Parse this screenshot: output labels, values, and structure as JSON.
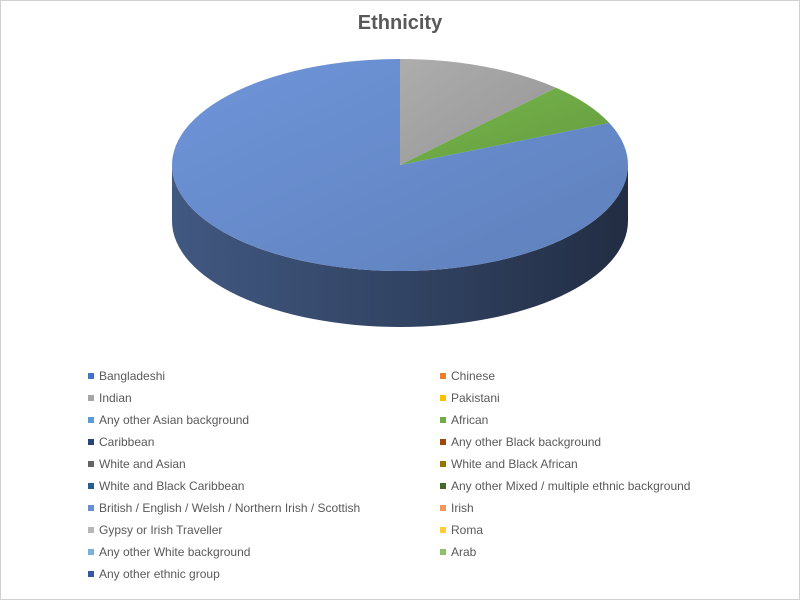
{
  "chart_data": {
    "type": "pie",
    "title": "Ethnicity",
    "three_d": true,
    "legend_position": "bottom",
    "legend_columns": 2,
    "start_angle_deg": 0,
    "series": [
      {
        "label": "Bangladeshi",
        "value": 0,
        "color": "#4472C4"
      },
      {
        "label": "Chinese",
        "value": 0,
        "color": "#ED7D31"
      },
      {
        "label": "Indian",
        "value": 12,
        "color": "#A5A5A5"
      },
      {
        "label": "Pakistani",
        "value": 0,
        "color": "#FFC000"
      },
      {
        "label": "Any other Asian background",
        "value": 0,
        "color": "#5B9BD5"
      },
      {
        "label": "African",
        "value": 6.5,
        "color": "#70AD47"
      },
      {
        "label": "Caribbean",
        "value": 0,
        "color": "#264478"
      },
      {
        "label": "Any other Black background",
        "value": 0,
        "color": "#9E480E"
      },
      {
        "label": "White and Asian",
        "value": 0,
        "color": "#636363"
      },
      {
        "label": "White and Black African",
        "value": 0,
        "color": "#997300"
      },
      {
        "label": "White and Black Caribbean",
        "value": 0,
        "color": "#255E91"
      },
      {
        "label": "Any other Mixed / multiple ethnic background",
        "value": 0,
        "color": "#43682B"
      },
      {
        "label": "British / English / Welsh / Northern Irish / Scottish",
        "value": 81.5,
        "color": "#698ED0"
      },
      {
        "label": "Irish",
        "value": 0,
        "color": "#F1975A"
      },
      {
        "label": "Gypsy or Irish Traveller",
        "value": 0,
        "color": "#B7B7B7"
      },
      {
        "label": "Roma",
        "value": 0,
        "color": "#FFCD33"
      },
      {
        "label": "Any other White background",
        "value": 0,
        "color": "#7CAFDD"
      },
      {
        "label": "Arab",
        "value": 0,
        "color": "#8CC168"
      },
      {
        "label": "Any other ethnic group",
        "value": 0,
        "color": "#335AA1"
      }
    ]
  }
}
